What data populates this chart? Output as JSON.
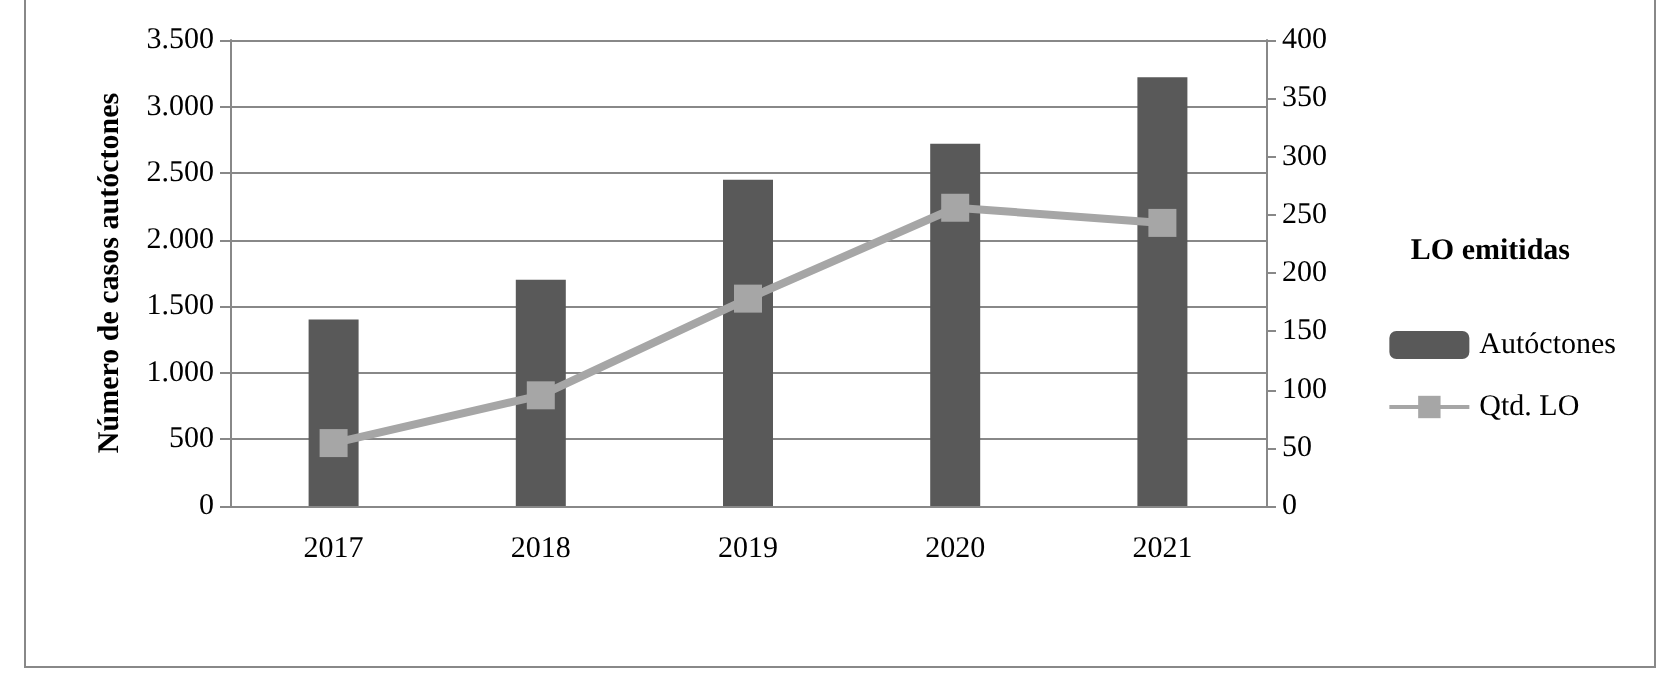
{
  "chart_data": {
    "type": "bar",
    "categories": [
      "2017",
      "2018",
      "2019",
      "2020",
      "2021"
    ],
    "ylabel": "Número de casos autóctones",
    "legend_title": "LO emitidas",
    "legend": "right",
    "grid": "y",
    "ylim": [
      0,
      3500
    ],
    "yticks": [
      0,
      {
        "value": 500,
        "label": "500"
      },
      {
        "value": 1000,
        "label": "1.000"
      },
      {
        "value": 1500,
        "label": "1.500"
      },
      {
        "value": 2000,
        "label": "2.000"
      },
      {
        "value": 2500,
        "label": "2.500"
      },
      {
        "value": 3000,
        "label": "3.000"
      },
      {
        "value": 3500,
        "label": "3.500"
      }
    ],
    "y2lim": [
      0,
      400
    ],
    "y2ticks": [
      0,
      50,
      100,
      150,
      200,
      250,
      300,
      350,
      400
    ],
    "series": [
      {
        "name": "Autóctones",
        "color": "#595959",
        "values": [
          1400,
          1700,
          2450,
          2720,
          3220
        ]
      },
      {
        "name": "Qtd. LO",
        "type": "line",
        "axis": "y2",
        "color": "#a6a6a6",
        "marker": "square",
        "values": [
          54,
          95,
          178,
          256,
          243
        ]
      }
    ]
  }
}
